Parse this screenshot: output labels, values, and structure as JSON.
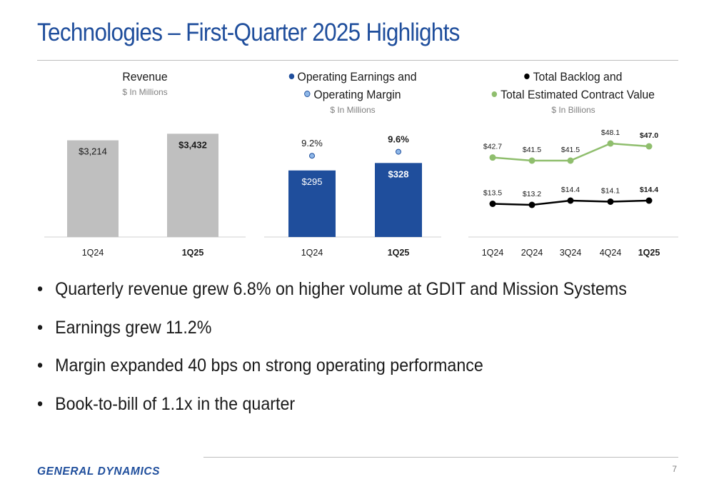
{
  "title": "Technologies – First-Quarter 2025 Highlights",
  "colors": {
    "title": "#1f4e9c",
    "gray_bar": "#bfbfbf",
    "blue_bar": "#1f4e9c",
    "margin_dot": "#8fb8e8",
    "green": "#8fbe6d",
    "black": "#000000"
  },
  "chart_data": [
    {
      "type": "bar",
      "title": "Revenue",
      "subtitle": "$ In Millions",
      "categories": [
        "1Q24",
        "1Q25"
      ],
      "values": [
        3214,
        3432
      ],
      "value_labels": [
        "$3,214",
        "$3,432"
      ],
      "ylim": [
        0,
        4200
      ],
      "color": "#bfbfbf"
    },
    {
      "type": "bar",
      "title_lines": [
        "Operating Earnings and",
        "Operating Margin"
      ],
      "subtitle": "$ In Millions",
      "categories": [
        "1Q24",
        "1Q25"
      ],
      "series": [
        {
          "name": "Operating Earnings",
          "values": [
            295,
            328
          ],
          "value_labels": [
            "$295",
            "$328"
          ],
          "color": "#1f4e9c"
        },
        {
          "name": "Operating Margin",
          "values": [
            9.2,
            9.6
          ],
          "value_labels": [
            "9.2%",
            "9.6%"
          ],
          "color": "#8fb8e8"
        }
      ],
      "ylim": [
        0,
        560
      ]
    },
    {
      "type": "line",
      "title_lines": [
        "Total Backlog and",
        "Total Estimated Contract Value"
      ],
      "subtitle": "$ In Billions",
      "categories": [
        "1Q24",
        "2Q24",
        "3Q24",
        "4Q24",
        "1Q25"
      ],
      "series": [
        {
          "name": "Total Estimated Contract Value",
          "values": [
            42.7,
            41.5,
            41.5,
            48.1,
            47.0
          ],
          "value_labels": [
            "$42.7",
            "$41.5",
            "$41.5",
            "$48.1",
            "$47.0"
          ],
          "color": "#8fbe6d"
        },
        {
          "name": "Total Backlog",
          "values": [
            13.5,
            13.2,
            14.4,
            14.1,
            14.4
          ],
          "value_labels": [
            "$13.5",
            "$13.2",
            "$14.4",
            "$14.1",
            "$14.4"
          ],
          "color": "#000000"
        }
      ],
      "ylim": [
        0,
        58
      ]
    }
  ],
  "bullets": [
    "Quarterly revenue grew 6.8% on higher volume at GDIT and Mission Systems",
    "Earnings grew 11.2%",
    "Margin expanded 40 bps on strong operating performance",
    "Book-to-bill of 1.1x in the quarter"
  ],
  "footer": {
    "logo": "GENERAL DYNAMICS",
    "page_number": "7"
  }
}
